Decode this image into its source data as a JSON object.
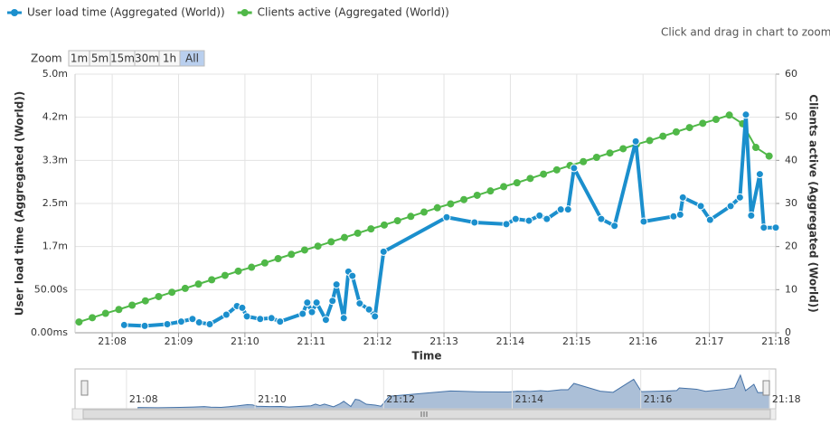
{
  "chart_data": {
    "type": "line",
    "legend": "top-left",
    "hint": "Click and drag in chart to zoom",
    "zoom_label": "Zoom",
    "zoom_buttons": [
      "1m",
      "5m",
      "15m",
      "30m",
      "1h",
      "All"
    ],
    "zoom_selected": "All",
    "xlabel": "Time",
    "ylabel": "User load time (Aggregated (World))",
    "y2label": "Clients active (Aggregated (World))",
    "grid": true,
    "xlim": [
      1267.44,
      1278
    ],
    "xticks": [
      {
        "value": 1268,
        "label": "21:08"
      },
      {
        "value": 1269,
        "label": "21:09"
      },
      {
        "value": 1270,
        "label": "21:10"
      },
      {
        "value": 1271,
        "label": "21:11"
      },
      {
        "value": 1272,
        "label": "21:12"
      },
      {
        "value": 1273,
        "label": "21:13"
      },
      {
        "value": 1274,
        "label": "21:14"
      },
      {
        "value": 1275,
        "label": "21:15"
      },
      {
        "value": 1276,
        "label": "21:16"
      },
      {
        "value": 1277,
        "label": "21:17"
      },
      {
        "value": 1278,
        "label": "21:18"
      }
    ],
    "ylim": [
      0,
      300
    ],
    "yticks": [
      {
        "value": 0,
        "label": "0.00ms"
      },
      {
        "value": 50,
        "label": "50.00s"
      },
      {
        "value": 100,
        "label": "1.7m"
      },
      {
        "value": 150,
        "label": "2.5m"
      },
      {
        "value": 200,
        "label": "3.3m"
      },
      {
        "value": 250,
        "label": "4.2m"
      },
      {
        "value": 300,
        "label": "5.0m"
      }
    ],
    "y2lim": [
      0,
      60
    ],
    "y2ticks": [
      0,
      10,
      20,
      30,
      40,
      50,
      60
    ],
    "series": [
      {
        "name": "User load time (Aggregated (World))",
        "color": "#1b8fcd",
        "axis": "y",
        "x": [
          1268.18,
          1268.49,
          1268.83,
          1269.04,
          1269.21,
          1269.31,
          1269.47,
          1269.72,
          1269.88,
          1269.96,
          1270.03,
          1270.23,
          1270.4,
          1270.53,
          1270.87,
          1270.94,
          1271.01,
          1271.08,
          1271.22,
          1271.32,
          1271.38,
          1271.49,
          1271.56,
          1271.62,
          1271.73,
          1271.87,
          1271.96,
          1272.09,
          1273.04,
          1273.46,
          1273.94,
          1274.08,
          1274.28,
          1274.44,
          1274.55,
          1274.76,
          1274.87,
          1274.96,
          1275.37,
          1275.57,
          1275.89,
          1276.01,
          1276.46,
          1276.56,
          1276.6,
          1276.87,
          1277.01,
          1277.32,
          1277.46,
          1277.55,
          1277.63,
          1277.76,
          1277.82,
          1278.0
        ],
        "values": [
          9,
          8,
          10,
          13,
          16,
          12,
          10,
          21,
          31,
          29,
          19,
          16,
          17,
          13,
          22,
          35,
          24,
          35,
          15,
          37,
          56,
          17,
          71,
          66,
          34,
          27,
          19,
          94,
          134,
          128,
          126,
          132,
          130,
          136,
          132,
          143,
          143,
          191,
          132,
          124,
          222,
          129,
          135,
          137,
          157,
          147,
          131,
          147,
          157,
          253,
          136,
          184,
          122,
          122
        ]
      },
      {
        "name": "Clients active (Aggregated (World))",
        "color": "#50b848",
        "axis": "y2",
        "x": [
          1267.5,
          1267.7,
          1267.9,
          1268.1,
          1268.3,
          1268.5,
          1268.7,
          1268.9,
          1269.1,
          1269.3,
          1269.5,
          1269.7,
          1269.9,
          1270.1,
          1270.3,
          1270.5,
          1270.7,
          1270.9,
          1271.1,
          1271.3,
          1271.5,
          1271.7,
          1271.9,
          1272.1,
          1272.3,
          1272.5,
          1272.7,
          1272.9,
          1273.1,
          1273.3,
          1273.5,
          1273.7,
          1273.9,
          1274.1,
          1274.3,
          1274.5,
          1274.7,
          1274.9,
          1275.1,
          1275.3,
          1275.5,
          1275.7,
          1275.9,
          1276.1,
          1276.3,
          1276.5,
          1276.7,
          1276.9,
          1277.1,
          1277.3,
          1277.5,
          1277.7,
          1277.9
        ],
        "values": [
          2.5,
          3.5,
          4.5,
          5.4,
          6.4,
          7.4,
          8.4,
          9.4,
          10.3,
          11.3,
          12.3,
          13.3,
          14.3,
          15.2,
          16.2,
          17.2,
          18.2,
          19.2,
          20.1,
          21.1,
          22.1,
          23.1,
          24.1,
          25.0,
          26.0,
          27.0,
          28.0,
          29.0,
          29.9,
          30.9,
          31.9,
          32.9,
          33.9,
          34.8,
          35.8,
          36.8,
          37.8,
          38.8,
          39.7,
          40.7,
          41.7,
          42.7,
          43.7,
          44.6,
          45.6,
          46.6,
          47.6,
          48.6,
          49.5,
          50.5,
          48.5,
          43,
          41
        ]
      }
    ],
    "navigator": {
      "xlim": [
        1267.2,
        1278.1
      ],
      "xticks": [
        {
          "value": 1268,
          "label": "21:08"
        },
        {
          "value": 1270,
          "label": "21:10"
        },
        {
          "value": 1272,
          "label": "21:12"
        },
        {
          "value": 1274,
          "label": "21:14"
        },
        {
          "value": 1276,
          "label": "21:16"
        },
        {
          "value": 1278,
          "label": "21:18"
        }
      ]
    }
  }
}
